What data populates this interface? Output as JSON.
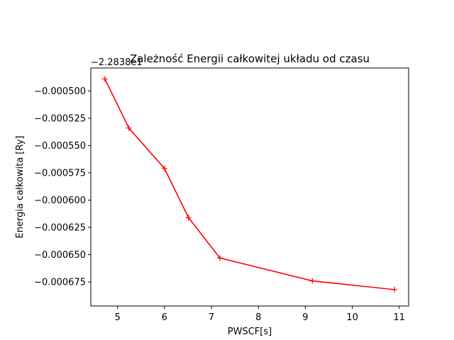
{
  "chart_data": {
    "type": "line",
    "title": "Zależność Energii całkowitej układu od czasu",
    "xlabel": "PWSCF[s]",
    "ylabel": "Energia całkowita [Ry]",
    "offset_label": "−2.2838e1",
    "xlim": [
      4.43,
      11.2
    ],
    "ylim": [
      -0.000697,
      -0.000479
    ],
    "xticks": [
      5,
      6,
      7,
      8,
      9,
      10,
      11
    ],
    "xtick_labels": [
      "5",
      "6",
      "7",
      "8",
      "9",
      "10",
      "11"
    ],
    "yticks": [
      -0.0005,
      -0.000525,
      -0.00055,
      -0.000575,
      -0.0006,
      -0.000625,
      -0.00065,
      -0.000675
    ],
    "ytick_labels": [
      "−0.000500",
      "−0.000525",
      "−0.000550",
      "−0.000575",
      "−0.000600",
      "−0.000625",
      "−0.000650",
      "−0.000675"
    ],
    "grid": false,
    "series": [
      {
        "color": "#ff0000",
        "marker": "+",
        "x": [
          4.73,
          5.24,
          6.0,
          6.51,
          7.18,
          9.15,
          10.9
        ],
        "y": [
          -0.000489,
          -0.000534,
          -0.000571,
          -0.000616,
          -0.000653,
          -0.000674,
          -0.000682
        ]
      }
    ]
  }
}
